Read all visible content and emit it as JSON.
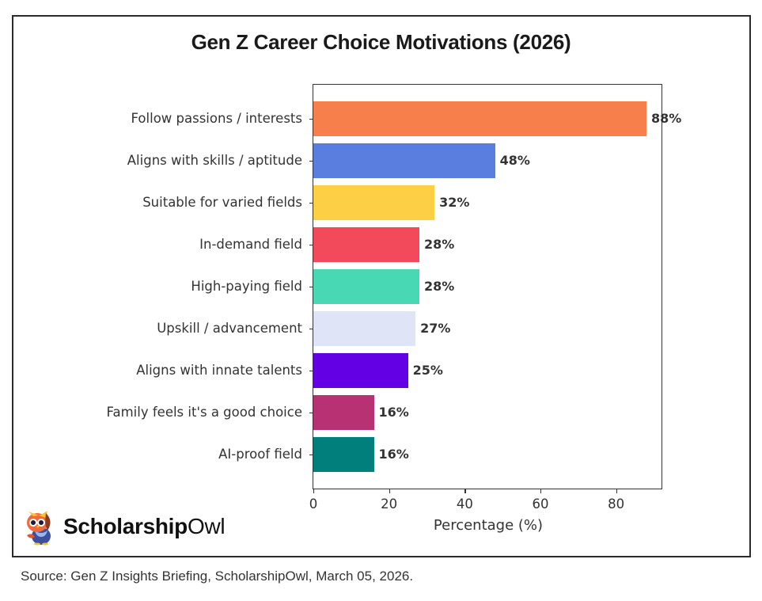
{
  "title": "Gen Z Career Choice Motivations (2026)",
  "logo": {
    "bold": "Scholarship",
    "light": "Owl",
    "icon": "owl-mascot-icon"
  },
  "source": "Source: Gen Z Insights Briefing, ScholarshipOwl, March 05, 2026.",
  "chart_data": {
    "type": "bar",
    "orientation": "horizontal",
    "title": "Gen Z Career Choice Motivations (2026)",
    "xlabel": "Percentage (%)",
    "ylabel": "",
    "xlim": [
      0,
      92.4
    ],
    "xticks": [
      0,
      20,
      40,
      60,
      80
    ],
    "grid": false,
    "legend": null,
    "categories": [
      "Follow passions / interests",
      "Aligns with skills / aptitude",
      "Suitable for varied fields",
      "In-demand field",
      "High-paying field",
      "Upskill / advancement",
      "Aligns with innate talents",
      "Family feels it's a good choice",
      "AI-proof field"
    ],
    "values": [
      88,
      48,
      32,
      28,
      28,
      27,
      25,
      16,
      16
    ],
    "value_labels": [
      "88%",
      "48%",
      "32%",
      "28%",
      "28%",
      "27%",
      "25%",
      "16%",
      "16%"
    ],
    "colors": [
      "#f77f4b",
      "#5a7de0",
      "#fccf44",
      "#f24a5a",
      "#48d9b4",
      "#dfe4f6",
      "#6300e4",
      "#b83173",
      "#017f7d"
    ]
  }
}
